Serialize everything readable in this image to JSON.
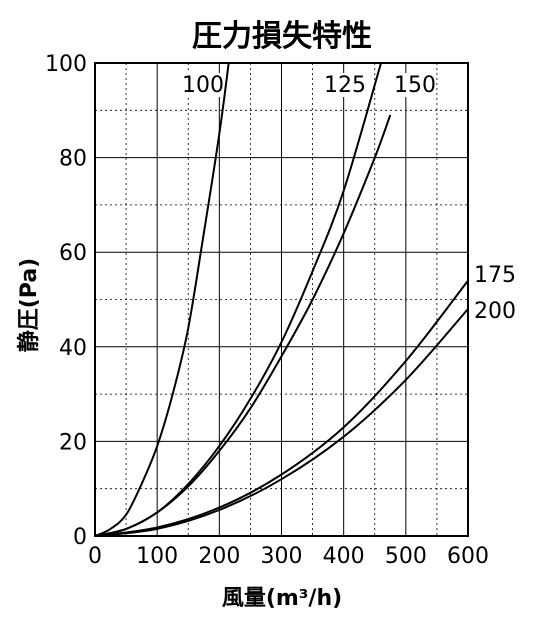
{
  "chart_data": {
    "type": "line",
    "title": "圧力損失特性",
    "xlabel": "風量(m³/h)",
    "ylabel": "静圧(Pa)",
    "xlim": [
      0,
      600
    ],
    "ylim": [
      0,
      100
    ],
    "x_ticks": [
      "0",
      "100",
      "200",
      "300",
      "400",
      "500",
      "600"
    ],
    "y_ticks": [
      "0",
      "20",
      "40",
      "60",
      "80",
      "100"
    ],
    "grid": true,
    "legend": "none",
    "series": [
      {
        "name": "100",
        "x": [
          0,
          25,
          50,
          75,
          100,
          125,
          150,
          175,
          200,
          215
        ],
        "y": [
          0,
          1.5,
          4.5,
          11,
          19,
          30,
          44,
          64,
          85,
          100
        ]
      },
      {
        "name": "125",
        "x": [
          0,
          50,
          100,
          150,
          200,
          250,
          300,
          350,
          400,
          460
        ],
        "y": [
          0,
          1.5,
          5,
          11,
          19,
          29,
          41,
          56,
          73,
          100
        ]
      },
      {
        "name": "150",
        "x": [
          0,
          50,
          100,
          150,
          200,
          250,
          300,
          350,
          400,
          450,
          475
        ],
        "y": [
          0,
          1.5,
          5,
          10.5,
          18,
          27,
          38,
          50,
          64,
          80,
          89
        ]
      },
      {
        "name": "175",
        "x": [
          0,
          100,
          200,
          300,
          400,
          500,
          600
        ],
        "y": [
          0,
          1.8,
          6,
          13,
          23,
          37,
          54
        ]
      },
      {
        "name": "200",
        "x": [
          0,
          100,
          200,
          300,
          400,
          500,
          600
        ],
        "y": [
          0,
          1.5,
          5.5,
          12,
          21,
          33,
          48
        ]
      }
    ]
  }
}
